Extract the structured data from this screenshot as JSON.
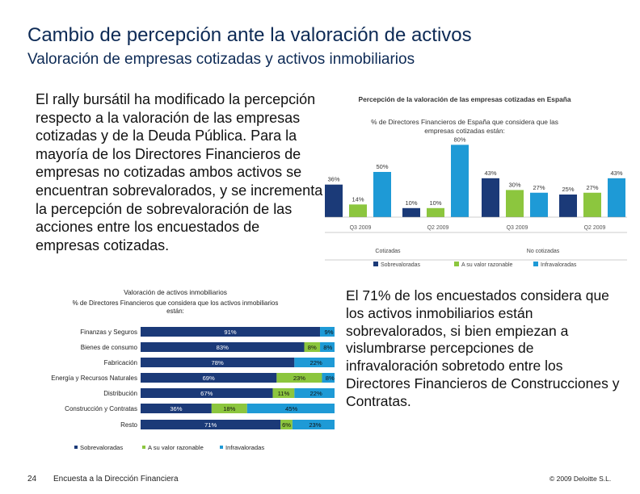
{
  "header": {
    "title": "Cambio de percepción ante la valoración de activos",
    "subtitle": "Valoración de empresas cotizadas y activos inmobiliarios"
  },
  "intro_text": "El rally bursátil ha modificado la percepción respecto a la valoración de las empresas cotizadas y de la Deuda Pública. Para la mayoría de los Directores Financieros de empresas no cotizadas ambos activos se encuentran sobrevalorados, y se incrementa la percepción de sobrevaloración de las acciones entre los encuestados de empresas cotizadas.",
  "right_text": "El 71% de los encuestados considera que los activos inmobiliarios están sobrevalorados, si bien empiezan a vislumbrarse percepciones de infravaloración sobretodo entre los Directores Financieros de Construcciones y Contratas.",
  "footer": {
    "page_number": "24",
    "source": "Encuesta a la Dirección Financiera",
    "copyright": "© 2009 Deloitte S.L."
  },
  "colors": {
    "sobrevaloradas": "#1b3a78",
    "razonable": "#8cc63e",
    "infravaloradas": "#1e9ad6"
  },
  "chart_data": [
    {
      "type": "bar",
      "title": "Percepción de la valoración de las empresas cotizadas en España",
      "subtitle": "% de Directores Financieros de España que considera que las empresas cotizadas están:",
      "categories": [
        "Q3 2009",
        "Q2 2009",
        "Q3 2009",
        "Q2 2009"
      ],
      "groups": [
        "Cotizadas",
        "No cotizadas"
      ],
      "series": [
        {
          "name": "Sobrevaloradas",
          "values": [
            36,
            10,
            43,
            25
          ]
        },
        {
          "name": "A su valor razonable",
          "values": [
            14,
            10,
            30,
            27
          ]
        },
        {
          "name": "Infravaloradas",
          "values": [
            50,
            80,
            27,
            43
          ]
        }
      ],
      "labels": [
        "36%",
        "14%",
        "50%",
        "10%",
        "10%",
        "80%",
        "43%",
        "30%",
        "27%",
        "25%",
        "27%",
        "43%"
      ],
      "ylim": [
        0,
        100
      ]
    },
    {
      "type": "bar",
      "orientation": "horizontal-stacked",
      "title": "Valoración de activos inmobiliarios",
      "subtitle": "% de Directores Financieros que considera que los activos inmobiliarios están:",
      "categories": [
        "Finanzas y Seguros",
        "Bienes de consumo",
        "Fabricación",
        "Energía y Recursos Naturales",
        "Distribución",
        "Construcción y Contratas",
        "Resto"
      ],
      "series": [
        {
          "name": "Sobrevaloradas",
          "values": [
            91,
            83,
            78,
            69,
            67,
            36,
            71
          ]
        },
        {
          "name": "A su valor razonable",
          "values": [
            0,
            8,
            0,
            23,
            11,
            18,
            6
          ]
        },
        {
          "name": "Infravaloradas",
          "values": [
            9,
            8,
            22,
            8,
            22,
            45,
            23
          ]
        }
      ],
      "labels": [
        [
          "91%",
          "",
          "9%"
        ],
        [
          "83%",
          "8%",
          "8%"
        ],
        [
          "78%",
          "",
          "22%"
        ],
        [
          "69%",
          "23%",
          "8%"
        ],
        [
          "67%",
          "11%",
          "22%"
        ],
        [
          "36%",
          "18%",
          "45%"
        ],
        [
          "71%",
          "6%",
          "23%"
        ]
      ],
      "xlim": [
        0,
        100
      ]
    }
  ]
}
